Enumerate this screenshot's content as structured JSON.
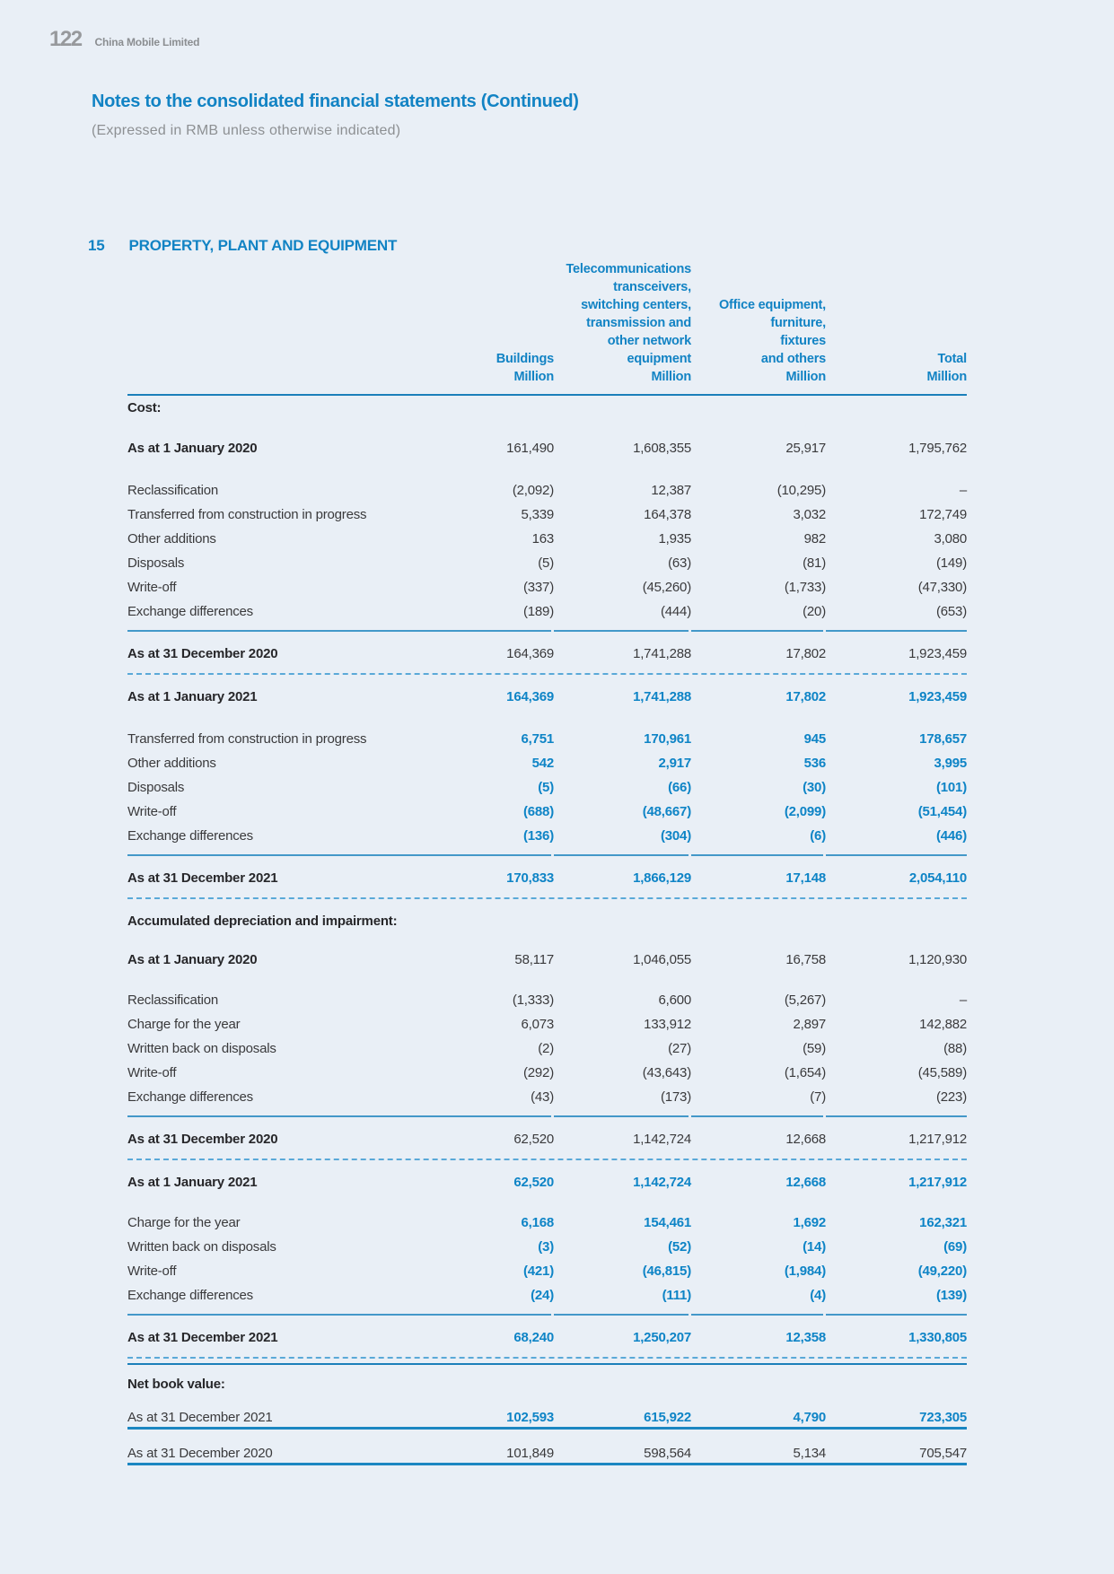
{
  "page": {
    "number": "122",
    "company": "China Mobile Limited"
  },
  "title": "Notes to the consolidated financial statements (Continued)",
  "subtitle": "(Expressed in RMB unless otherwise indicated)",
  "section": {
    "number": "15",
    "title": "PROPERTY, PLANT AND EQUIPMENT"
  },
  "colors": {
    "accent_blue": "#1283c4",
    "value_blue": "#0e84c6",
    "rule_blue": "#4398c9",
    "dashed_blue": "#5aa9d8",
    "text_dark": "#3a3a3c",
    "text_gray": "#8d9093",
    "page_background": "#e9eff6"
  },
  "table": {
    "column_keys": [
      "buildings",
      "telecom-network-equipment",
      "office-equipment",
      "total"
    ],
    "columns": [
      {
        "lines": [
          "Buildings",
          "Million"
        ]
      },
      {
        "lines": [
          "Telecommunications",
          "transceivers,",
          "switching centers,",
          "transmission and",
          "other network",
          "equipment",
          "Million"
        ]
      },
      {
        "lines": [
          "Office equipment,",
          "furniture,",
          "fixtures",
          "and others",
          "Million"
        ]
      },
      {
        "lines": [
          "Total",
          "Million"
        ]
      }
    ],
    "rows": [
      {
        "t": "section",
        "label": "Cost:"
      },
      {
        "t": "gap",
        "h": 18
      },
      {
        "t": "data",
        "label": "As at 1 January 2020",
        "bold": true,
        "values": [
          "161,490",
          "1,608,355",
          "25,917",
          "1,795,762"
        ]
      },
      {
        "t": "gap",
        "h": 20
      },
      {
        "t": "data",
        "label": "Reclassification",
        "values": [
          "(2,092)",
          "12,387",
          "(10,295)",
          "–"
        ]
      },
      {
        "t": "data",
        "label": "Transferred from construction in progress",
        "values": [
          "5,339",
          "164,378",
          "3,032",
          "172,749"
        ]
      },
      {
        "t": "data",
        "label": "Other additions",
        "values": [
          "163",
          "1,935",
          "982",
          "3,080"
        ]
      },
      {
        "t": "data",
        "label": "Disposals",
        "values": [
          "(5)",
          "(63)",
          "(81)",
          "(149)"
        ]
      },
      {
        "t": "data",
        "label": "Write-off",
        "values": [
          "(337)",
          "(45,260)",
          "(1,733)",
          "(47,330)"
        ]
      },
      {
        "t": "data",
        "label": "Exchange differences",
        "values": [
          "(189)",
          "(444)",
          "(20)",
          "(653)"
        ]
      },
      {
        "t": "rule"
      },
      {
        "t": "data",
        "label": "As at 31 December 2020",
        "bold": true,
        "values": [
          "164,369",
          "1,741,288",
          "17,802",
          "1,923,459"
        ]
      },
      {
        "t": "dashed"
      },
      {
        "t": "data",
        "label": "As at 1 January 2021",
        "bold": true,
        "blue": true,
        "values": [
          "164,369",
          "1,741,288",
          "17,802",
          "1,923,459"
        ]
      },
      {
        "t": "gap",
        "h": 20
      },
      {
        "t": "data",
        "label": "Transferred from construction in progress",
        "blue": true,
        "values": [
          "6,751",
          "170,961",
          "945",
          "178,657"
        ]
      },
      {
        "t": "data",
        "label": "Other additions",
        "blue": true,
        "values": [
          "542",
          "2,917",
          "536",
          "3,995"
        ]
      },
      {
        "t": "data",
        "label": "Disposals",
        "blue": true,
        "values": [
          "(5)",
          "(66)",
          "(30)",
          "(101)"
        ]
      },
      {
        "t": "data",
        "label": "Write-off",
        "blue": true,
        "values": [
          "(688)",
          "(48,667)",
          "(2,099)",
          "(51,454)"
        ]
      },
      {
        "t": "data",
        "label": "Exchange differences",
        "blue": true,
        "values": [
          "(136)",
          "(304)",
          "(6)",
          "(446)"
        ]
      },
      {
        "t": "rule"
      },
      {
        "t": "data",
        "label": "As at 31 December 2021",
        "bold": true,
        "blue": true,
        "values": [
          "170,833",
          "1,866,129",
          "17,148",
          "2,054,110"
        ]
      },
      {
        "t": "dashed"
      },
      {
        "t": "section",
        "label": "Accumulated depreciation and impairment:"
      },
      {
        "t": "gap",
        "h": 16
      },
      {
        "t": "data",
        "label": "As at 1 January 2020",
        "bold": true,
        "values": [
          "58,117",
          "1,046,055",
          "16,758",
          "1,120,930"
        ]
      },
      {
        "t": "gap",
        "h": 18
      },
      {
        "t": "data",
        "label": "Reclassification",
        "values": [
          "(1,333)",
          "6,600",
          "(5,267)",
          "–"
        ]
      },
      {
        "t": "data",
        "label": "Charge for the year",
        "values": [
          "6,073",
          "133,912",
          "2,897",
          "142,882"
        ]
      },
      {
        "t": "data",
        "label": "Written back on disposals",
        "values": [
          "(2)",
          "(27)",
          "(59)",
          "(88)"
        ]
      },
      {
        "t": "data",
        "label": "Write-off",
        "values": [
          "(292)",
          "(43,643)",
          "(1,654)",
          "(45,589)"
        ]
      },
      {
        "t": "data",
        "label": "Exchange differences",
        "values": [
          "(43)",
          "(173)",
          "(7)",
          "(223)"
        ]
      },
      {
        "t": "rule"
      },
      {
        "t": "data",
        "label": "As at 31 December 2020",
        "bold": true,
        "values": [
          "62,520",
          "1,142,724",
          "12,668",
          "1,217,912"
        ]
      },
      {
        "t": "dashed"
      },
      {
        "t": "data",
        "label": "As at 1 January 2021",
        "bold": true,
        "blue": true,
        "values": [
          "62,520",
          "1,142,724",
          "12,668",
          "1,217,912"
        ]
      },
      {
        "t": "gap",
        "h": 18
      },
      {
        "t": "data",
        "label": "Charge for the year",
        "blue": true,
        "values": [
          "6,168",
          "154,461",
          "1,692",
          "162,321"
        ]
      },
      {
        "t": "data",
        "label": "Written back on disposals",
        "blue": true,
        "values": [
          "(3)",
          "(52)",
          "(14)",
          "(69)"
        ]
      },
      {
        "t": "data",
        "label": "Write-off",
        "blue": true,
        "values": [
          "(421)",
          "(46,815)",
          "(1,984)",
          "(49,220)"
        ]
      },
      {
        "t": "data",
        "label": "Exchange differences",
        "blue": true,
        "values": [
          "(24)",
          "(111)",
          "(4)",
          "(139)"
        ]
      },
      {
        "t": "rule"
      },
      {
        "t": "data",
        "label": "As at 31 December 2021",
        "bold": true,
        "blue": true,
        "values": [
          "68,240",
          "1,250,207",
          "12,358",
          "1,330,805"
        ]
      },
      {
        "t": "dashedsolid"
      },
      {
        "t": "section",
        "label": "Net book value:"
      },
      {
        "t": "gap",
        "h": 10
      },
      {
        "t": "data",
        "label": "As at 31 December 2021",
        "blue": true,
        "underline": true,
        "values": [
          "102,593",
          "615,922",
          "4,790",
          "723,305"
        ]
      },
      {
        "t": "gap",
        "h": 13
      },
      {
        "t": "data",
        "label": "As at 31 December 2020",
        "underline": true,
        "values": [
          "101,849",
          "598,564",
          "5,134",
          "705,547"
        ]
      }
    ]
  }
}
